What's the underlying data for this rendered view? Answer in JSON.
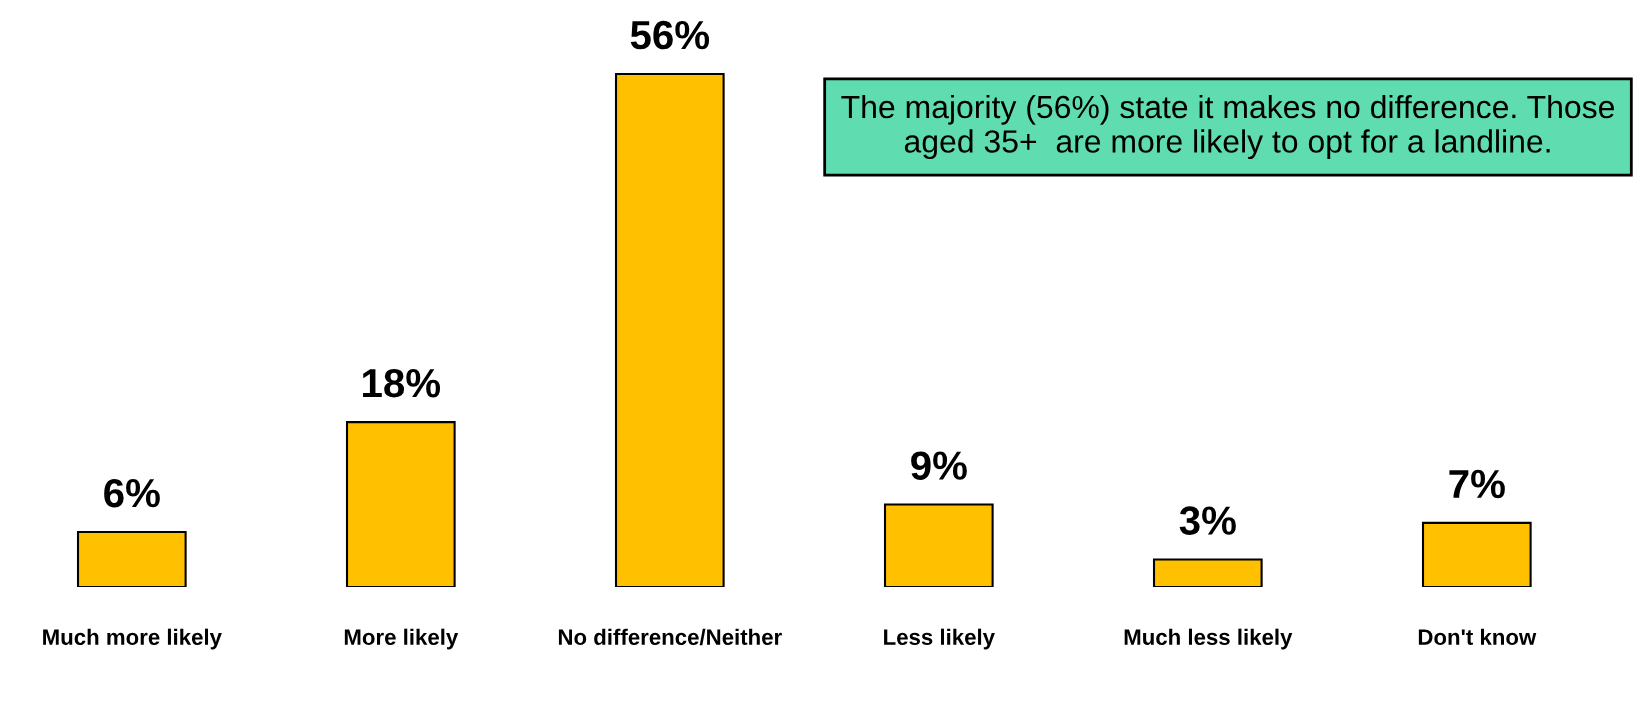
{
  "chart_data": {
    "type": "bar",
    "categories": [
      "Much more likely",
      "More likely",
      "No difference/Neither",
      "Less likely",
      "Much less likely",
      "Don't know"
    ],
    "values": [
      6,
      18,
      56,
      9,
      3,
      7
    ],
    "value_labels": [
      "6%",
      "18%",
      "56%",
      "9%",
      "3%",
      "7%"
    ],
    "tick_labels": "x",
    "color": "#ffc000",
    "grid": false,
    "legend": false,
    "annotations": [
      "The majority (56%) state it makes no difference. Those aged 35+  are more likely to opt for a landline."
    ]
  }
}
